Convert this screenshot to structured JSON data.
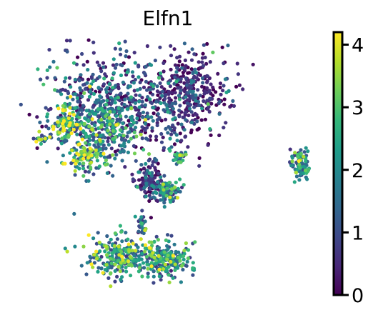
{
  "chart_data": {
    "type": "scatter",
    "title": "Elfn1",
    "xlabel": "",
    "ylabel": "",
    "grid": false,
    "axes_visible": false,
    "colormap": "viridis",
    "colorbar": {
      "placement": "right",
      "vmin": 0,
      "vmax": 4.2,
      "ticks": [
        0,
        1,
        2,
        3,
        4
      ],
      "tick_labels": [
        "0",
        "1",
        "2",
        "3",
        "4"
      ]
    },
    "clusters": [
      {
        "cx": 0.42,
        "cy": 0.72,
        "rx": 0.3,
        "ry": 0.22,
        "n": 520,
        "mean": 1.2
      },
      {
        "cx": 0.82,
        "cy": 0.75,
        "rx": 0.2,
        "ry": 0.17,
        "n": 420,
        "mean": 0.4
      },
      {
        "cx": 0.38,
        "cy": 0.62,
        "rx": 0.18,
        "ry": 0.12,
        "n": 200,
        "mean": 2.4
      },
      {
        "cx": 0.18,
        "cy": 0.64,
        "rx": 0.08,
        "ry": 0.07,
        "n": 90,
        "mean": 3.4
      },
      {
        "cx": 0.28,
        "cy": 0.5,
        "rx": 0.1,
        "ry": 0.07,
        "n": 90,
        "mean": 3.2
      },
      {
        "cx": 0.05,
        "cy": 0.57,
        "rx": 0.05,
        "ry": 0.02,
        "n": 20,
        "mean": 2.4
      },
      {
        "cx": 0.62,
        "cy": 0.4,
        "rx": 0.06,
        "ry": 0.07,
        "n": 130,
        "mean": 0.6
      },
      {
        "cx": 0.72,
        "cy": 0.36,
        "rx": 0.06,
        "ry": 0.05,
        "n": 90,
        "mean": 2.3
      },
      {
        "cx": 0.78,
        "cy": 0.5,
        "rx": 0.04,
        "ry": 0.03,
        "n": 30,
        "mean": 2.6
      },
      {
        "cx": 0.58,
        "cy": 0.22,
        "rx": 0.03,
        "ry": 0.05,
        "n": 30,
        "mean": 1.8
      },
      {
        "cx": 0.45,
        "cy": 0.09,
        "rx": 0.14,
        "ry": 0.08,
        "n": 240,
        "mean": 2.6
      },
      {
        "cx": 0.7,
        "cy": 0.08,
        "rx": 0.12,
        "ry": 0.07,
        "n": 220,
        "mean": 2.3
      },
      {
        "cx": 1.42,
        "cy": 0.47,
        "rx": 0.04,
        "ry": 0.06,
        "n": 80,
        "mean": 2.0
      }
    ]
  }
}
